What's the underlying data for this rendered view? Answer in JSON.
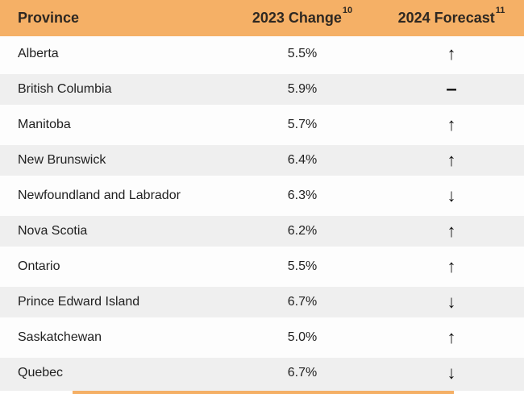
{
  "header": {
    "province_label": "Province",
    "change_label": "2023 Change",
    "change_footnote": "10",
    "forecast_label": "2024 Forecast",
    "forecast_footnote": "11"
  },
  "icons": {
    "up": "↑",
    "down": "↓",
    "flat": "–"
  },
  "colors": {
    "header_bg": "#F5B066",
    "header_text": "#2E2822",
    "row_bg": "#FDFDFD",
    "row_alt_bg": "#EFEFEF",
    "body_text": "#212121",
    "arrow": "#101010"
  },
  "rows": [
    {
      "province": "Alberta",
      "change": "5.5%",
      "forecast": "up"
    },
    {
      "province": "British Columbia",
      "change": "5.9%",
      "forecast": "flat"
    },
    {
      "province": "Manitoba",
      "change": "5.7%",
      "forecast": "up"
    },
    {
      "province": "New Brunswick",
      "change": "6.4%",
      "forecast": "up"
    },
    {
      "province": "Newfoundland and Labrador",
      "change": "6.3%",
      "forecast": "down"
    },
    {
      "province": "Nova Scotia",
      "change": "6.2%",
      "forecast": "up"
    },
    {
      "province": "Ontario",
      "change": "5.5%",
      "forecast": "up"
    },
    {
      "province": "Prince Edward Island",
      "change": "6.7%",
      "forecast": "down"
    },
    {
      "province": "Saskatchewan",
      "change": "5.0%",
      "forecast": "up"
    },
    {
      "province": "Quebec",
      "change": "6.7%",
      "forecast": "down"
    }
  ],
  "chart_data": {
    "type": "table",
    "columns": [
      "Province",
      "2023 Change",
      "2024 Forecast"
    ],
    "column_footnotes": {
      "2023 Change": "10",
      "2024 Forecast": "11"
    },
    "rows": [
      [
        "Alberta",
        "5.5%",
        "up"
      ],
      [
        "British Columbia",
        "5.9%",
        "flat"
      ],
      [
        "Manitoba",
        "5.7%",
        "up"
      ],
      [
        "New Brunswick",
        "6.4%",
        "up"
      ],
      [
        "Newfoundland and Labrador",
        "6.3%",
        "down"
      ],
      [
        "Nova Scotia",
        "6.2%",
        "up"
      ],
      [
        "Ontario",
        "5.5%",
        "up"
      ],
      [
        "Prince Edward Island",
        "6.7%",
        "down"
      ],
      [
        "Saskatchewan",
        "5.0%",
        "up"
      ],
      [
        "Quebec",
        "6.7%",
        "down"
      ]
    ]
  }
}
